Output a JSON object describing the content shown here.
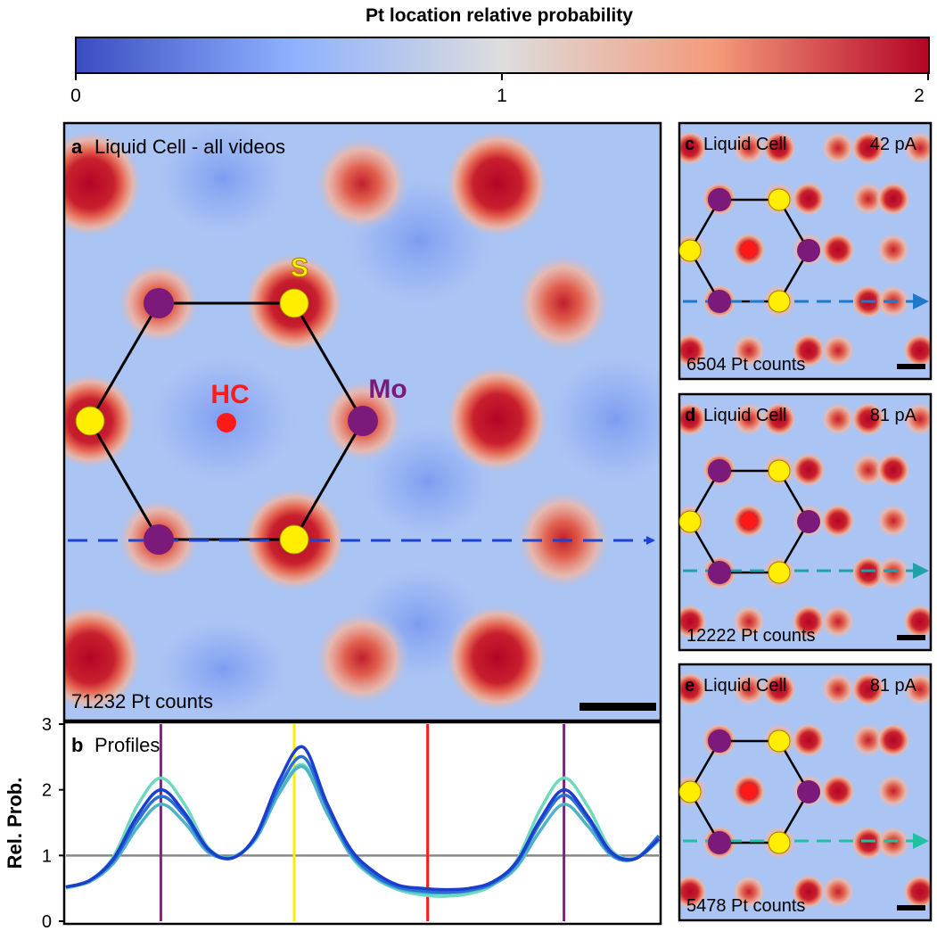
{
  "colorbar": {
    "title": "Pt location relative probability",
    "ticks": [
      "0",
      "1",
      "2"
    ],
    "colors": [
      "#3b4cc0",
      "#dddddd",
      "#b40426"
    ]
  },
  "panel_a": {
    "letter": "a",
    "title": "Liquid Cell - all videos",
    "counts": "71232 Pt counts",
    "site_labels": {
      "s": "S",
      "mo": "Mo",
      "hc": "HC"
    }
  },
  "panel_b": {
    "letter": "b",
    "title": "Profiles",
    "ylabel": "Rel. Prob.",
    "yticks": [
      "0",
      "1",
      "2",
      "3"
    ]
  },
  "panel_c": {
    "letter": "c",
    "title": "Liquid Cell",
    "current": "42 pA",
    "counts": "6504 Pt counts",
    "arrow_color": "#1f78c8"
  },
  "panel_d": {
    "letter": "d",
    "title": "Liquid Cell",
    "current": "81 pA",
    "counts": "12222 Pt counts",
    "arrow_color": "#20a0a8"
  },
  "panel_e": {
    "letter": "e",
    "title": "Liquid Cell",
    "current": "81 pA",
    "counts": "5478 Pt counts",
    "arrow_color": "#20c0a0"
  },
  "colors": {
    "mo": "#7b1a7b",
    "s": "#ffee00",
    "hc": "#ff1a1a",
    "arrow_a": "#1a44d8"
  },
  "chart_data": {
    "type": "line",
    "title": "Profiles",
    "xlabel": "",
    "ylabel": "Rel. Prob.",
    "ylim": [
      0,
      3
    ],
    "x": [
      0,
      0.04,
      0.08,
      0.12,
      0.16,
      0.2,
      0.24,
      0.28,
      0.32,
      0.36,
      0.4,
      0.44,
      0.48,
      0.52,
      0.56,
      0.6,
      0.64,
      0.68,
      0.72,
      0.76,
      0.8,
      0.84,
      0.88,
      0.92,
      0.96,
      1.0
    ],
    "series": [
      {
        "values": [
          0.52,
          0.62,
          0.95,
          1.6,
          2.0,
          1.65,
          1.1,
          0.96,
          1.3,
          2.15,
          2.65,
          1.8,
          1.1,
          0.75,
          0.55,
          0.5,
          0.48,
          0.5,
          0.6,
          0.9,
          1.55,
          2.0,
          1.6,
          1.05,
          0.95,
          1.25
        ],
        "color": "#1a3fcc"
      },
      {
        "values": [
          0.52,
          0.62,
          0.92,
          1.52,
          1.9,
          1.6,
          1.08,
          0.96,
          1.28,
          2.05,
          2.5,
          1.75,
          1.05,
          0.7,
          0.52,
          0.46,
          0.44,
          0.47,
          0.58,
          0.88,
          1.5,
          1.92,
          1.55,
          1.02,
          0.95,
          1.3
        ],
        "color": "#2a6fd6"
      },
      {
        "values": [
          0.52,
          0.6,
          0.88,
          1.42,
          1.78,
          1.5,
          1.05,
          0.98,
          1.25,
          1.95,
          2.35,
          1.65,
          1.02,
          0.68,
          0.5,
          0.44,
          0.43,
          0.46,
          0.56,
          0.82,
          1.38,
          1.78,
          1.45,
          1.0,
          0.95,
          1.28
        ],
        "color": "#4fb3c8"
      },
      {
        "values": [
          0.5,
          0.62,
          0.98,
          1.75,
          2.18,
          1.78,
          1.12,
          0.97,
          1.28,
          1.98,
          2.38,
          1.7,
          1.0,
          0.66,
          0.48,
          0.4,
          0.38,
          0.42,
          0.55,
          0.92,
          1.7,
          2.18,
          1.75,
          1.08,
          0.96,
          1.22
        ],
        "color": "#6fd8c0"
      }
    ],
    "vlines": [
      {
        "x": 0.16,
        "color": "#8b1a8b"
      },
      {
        "x": 0.385,
        "color": "#ffee00"
      },
      {
        "x": 0.61,
        "color": "#ff1a1a"
      },
      {
        "x": 0.84,
        "color": "#8b1a8b"
      }
    ],
    "hline": 1
  }
}
